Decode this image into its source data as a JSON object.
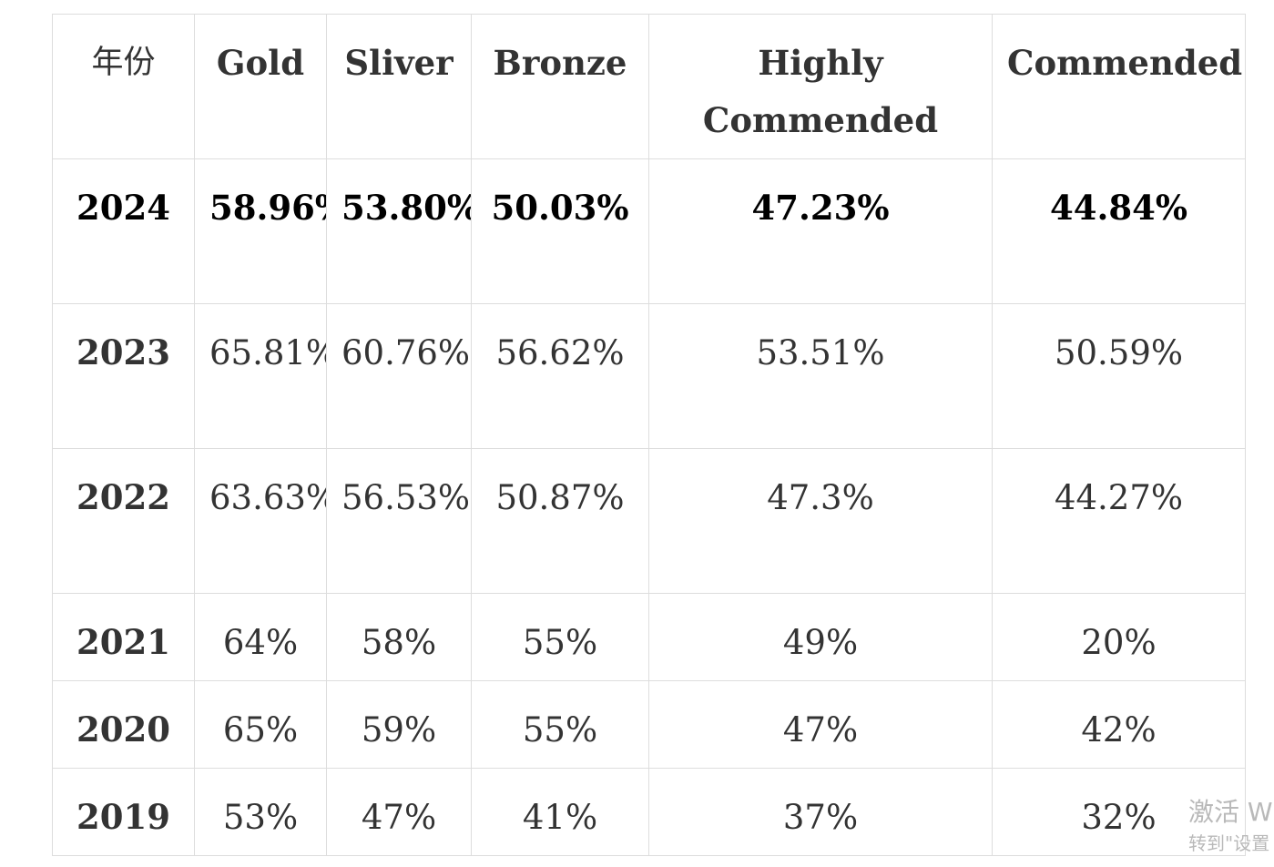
{
  "table": {
    "headers": [
      "年份",
      "Gold",
      "Sliver",
      "Bronze",
      "Highly Commended",
      "Commended"
    ],
    "rows": [
      {
        "year": "2024",
        "gold": "58.96%",
        "silver": "53.80%",
        "bronze": "50.03%",
        "highly_commended": "47.23%",
        "commended": "44.84%"
      },
      {
        "year": "2023",
        "gold": "65.81%",
        "silver": "60.76%",
        "bronze": "56.62%",
        "highly_commended": "53.51%",
        "commended": "50.59%"
      },
      {
        "year": "2022",
        "gold": "63.63%",
        "silver": "56.53%",
        "bronze": "50.87%",
        "highly_commended": "47.3%",
        "commended": "44.27%"
      },
      {
        "year": "2021",
        "gold": "64%",
        "silver": "58%",
        "bronze": "55%",
        "highly_commended": "49%",
        "commended": "20%"
      },
      {
        "year": "2020",
        "gold": "65%",
        "silver": "59%",
        "bronze": "55%",
        "highly_commended": "47%",
        "commended": "42%"
      },
      {
        "year": "2019",
        "gold": "53%",
        "silver": "47%",
        "bronze": "41%",
        "highly_commended": "37%",
        "commended": "32%"
      }
    ]
  },
  "watermark": {
    "line1": "激活 W",
    "line2": "转到\"设置"
  }
}
